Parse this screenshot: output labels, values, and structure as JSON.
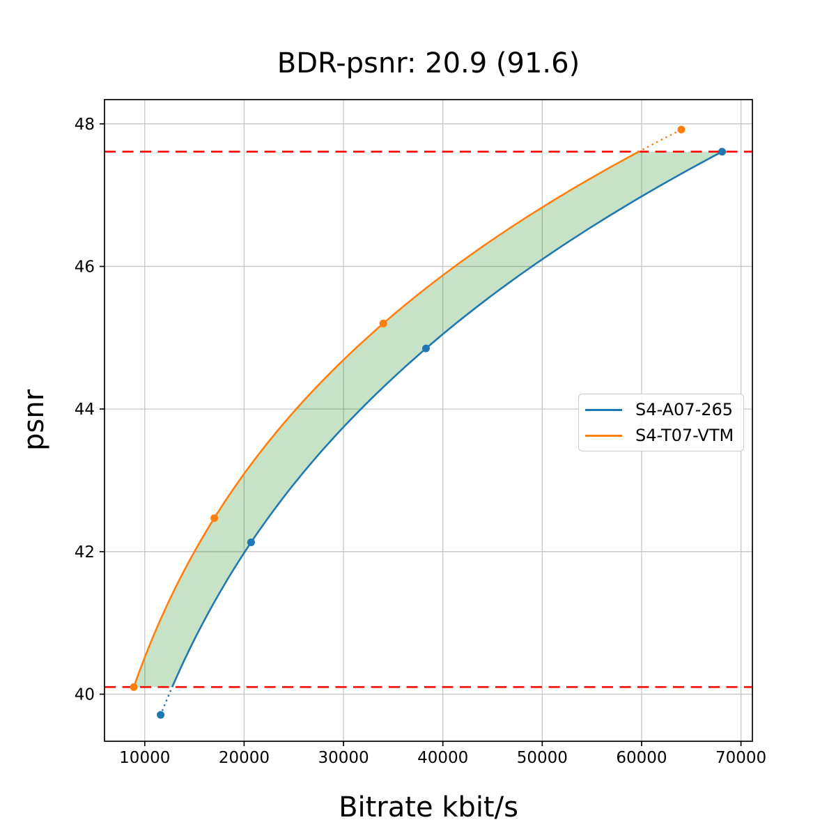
{
  "chart_data": {
    "type": "line",
    "title": "BDR-psnr: 20.9 (91.6)",
    "xlabel": "Bitrate kbit/s",
    "ylabel": "psnr",
    "xlim": [
      5950,
      71150
    ],
    "ylim": [
      39.34,
      48.34
    ],
    "x_ticks": [
      10000,
      20000,
      30000,
      40000,
      50000,
      60000,
      70000
    ],
    "x_tick_labels": [
      "10000",
      "20000",
      "30000",
      "40000",
      "50000",
      "60000",
      "70000"
    ],
    "y_ticks": [
      40,
      42,
      44,
      46,
      48
    ],
    "y_tick_labels": [
      "40",
      "42",
      "44",
      "46",
      "48"
    ],
    "grid": true,
    "legend_position": "center right",
    "series": [
      {
        "name": "S4-A07-265",
        "color": "#1f77b4",
        "marker": "circle",
        "points": [
          {
            "bitrate": 11600,
            "psnr": 39.71
          },
          {
            "bitrate": 20700,
            "psnr": 42.13
          },
          {
            "bitrate": 38300,
            "psnr": 44.85
          },
          {
            "bitrate": 68100,
            "psnr": 47.61
          }
        ]
      },
      {
        "name": "S4-T07-VTM",
        "color": "#ff7f0e",
        "marker": "circle",
        "points": [
          {
            "bitrate": 8900,
            "psnr": 40.1
          },
          {
            "bitrate": 17000,
            "psnr": 42.47
          },
          {
            "bitrate": 34000,
            "psnr": 45.2
          },
          {
            "bitrate": 64000,
            "psnr": 47.92
          }
        ]
      }
    ],
    "bound_lines": {
      "color": "#ff0000",
      "style": "dashed",
      "psnr_values": [
        40.1,
        47.61
      ]
    },
    "shaded_region": {
      "fill_color": "#008000",
      "fill_opacity": 0.22,
      "between": "S4-T07-VTM and S4-A07-265 curves over psnr 40.1 to 47.61"
    },
    "interpolation": "smooth (pchip of log-rate vs psnr), dotted outside overlap interval"
  }
}
